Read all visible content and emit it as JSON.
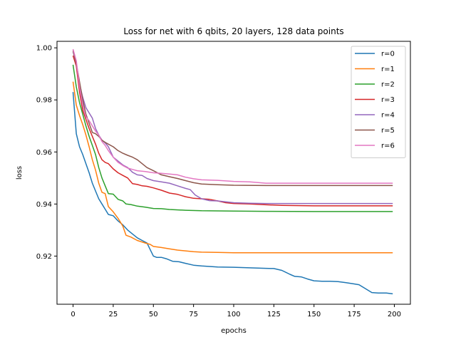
{
  "chart_data": {
    "type": "line",
    "title": "Loss for net with 6 qbits, 20 layers, 128 data points",
    "xlabel": "epochs",
    "ylabel": "loss",
    "xlim": [
      -10,
      210
    ],
    "ylim": [
      0.9015,
      1.0025
    ],
    "xticks": [
      0,
      25,
      50,
      75,
      100,
      125,
      150,
      175,
      200
    ],
    "yticks": [
      0.92,
      0.94,
      0.96,
      0.98,
      1.0
    ],
    "ytick_labels": [
      "0.92",
      "0.94",
      "0.96",
      "0.98",
      "1.00"
    ],
    "grid": false,
    "legend_position": "top-right",
    "series": [
      {
        "name": "r=0",
        "color": "#1f77b4",
        "points": [
          [
            0,
            0.983
          ],
          [
            2,
            0.967
          ],
          [
            4,
            0.962
          ],
          [
            6,
            0.959
          ],
          [
            8,
            0.9555
          ],
          [
            10,
            0.952
          ],
          [
            12,
            0.948
          ],
          [
            14,
            0.945
          ],
          [
            16,
            0.942
          ],
          [
            18,
            0.94
          ],
          [
            20,
            0.938
          ],
          [
            22,
            0.936
          ],
          [
            25,
            0.9355
          ],
          [
            28,
            0.9335
          ],
          [
            31,
            0.932
          ],
          [
            34,
            0.93
          ],
          [
            37,
            0.9285
          ],
          [
            40,
            0.927
          ],
          [
            43,
            0.926
          ],
          [
            46,
            0.925
          ],
          [
            48,
            0.9225
          ],
          [
            50,
            0.92
          ],
          [
            52,
            0.9195
          ],
          [
            55,
            0.9195
          ],
          [
            58,
            0.919
          ],
          [
            62,
            0.918
          ],
          [
            66,
            0.9178
          ],
          [
            70,
            0.9172
          ],
          [
            75,
            0.9165
          ],
          [
            80,
            0.9162
          ],
          [
            90,
            0.9158
          ],
          [
            100,
            0.9157
          ],
          [
            110,
            0.9155
          ],
          [
            120,
            0.9153
          ],
          [
            125,
            0.9152
          ],
          [
            130,
            0.9145
          ],
          [
            135,
            0.913
          ],
          [
            138,
            0.9122
          ],
          [
            142,
            0.912
          ],
          [
            146,
            0.9112
          ],
          [
            150,
            0.9105
          ],
          [
            155,
            0.9103
          ],
          [
            160,
            0.9103
          ],
          [
            165,
            0.9102
          ],
          [
            170,
            0.9098
          ],
          [
            175,
            0.9093
          ],
          [
            178,
            0.909
          ],
          [
            182,
            0.9075
          ],
          [
            186,
            0.906
          ],
          [
            190,
            0.9058
          ],
          [
            195,
            0.9058
          ],
          [
            199,
            0.9055
          ]
        ]
      },
      {
        "name": "r=1",
        "color": "#ff7f0e",
        "points": [
          [
            0,
            0.987
          ],
          [
            2,
            0.978
          ],
          [
            4,
            0.974
          ],
          [
            6,
            0.9705
          ],
          [
            8,
            0.9665
          ],
          [
            10,
            0.962
          ],
          [
            12,
            0.957
          ],
          [
            14,
            0.953
          ],
          [
            16,
            0.948
          ],
          [
            18,
            0.9445
          ],
          [
            20,
            0.944
          ],
          [
            22,
            0.939
          ],
          [
            25,
            0.937
          ],
          [
            28,
            0.9345
          ],
          [
            31,
            0.9315
          ],
          [
            33,
            0.928
          ],
          [
            36,
            0.9273
          ],
          [
            40,
            0.926
          ],
          [
            45,
            0.925
          ],
          [
            48,
            0.9245
          ],
          [
            50,
            0.9237
          ],
          [
            55,
            0.9233
          ],
          [
            60,
            0.9228
          ],
          [
            65,
            0.9223
          ],
          [
            70,
            0.922
          ],
          [
            75,
            0.9217
          ],
          [
            80,
            0.9215
          ],
          [
            90,
            0.9214
          ],
          [
            100,
            0.9213
          ],
          [
            120,
            0.9213
          ],
          [
            150,
            0.9213
          ],
          [
            180,
            0.9213
          ],
          [
            199,
            0.9213
          ]
        ]
      },
      {
        "name": "r=2",
        "color": "#2ca02c",
        "points": [
          [
            0,
            0.9935
          ],
          [
            2,
            0.985
          ],
          [
            4,
            0.979
          ],
          [
            6,
            0.9745
          ],
          [
            8,
            0.97
          ],
          [
            10,
            0.966
          ],
          [
            12,
            0.9625
          ],
          [
            14,
            0.959
          ],
          [
            16,
            0.954
          ],
          [
            18,
            0.95
          ],
          [
            20,
            0.947
          ],
          [
            22,
            0.944
          ],
          [
            25,
            0.9438
          ],
          [
            28,
            0.9418
          ],
          [
            31,
            0.9412
          ],
          [
            33,
            0.94
          ],
          [
            36,
            0.9398
          ],
          [
            40,
            0.9392
          ],
          [
            45,
            0.9388
          ],
          [
            50,
            0.9383
          ],
          [
            55,
            0.9382
          ],
          [
            60,
            0.9379
          ],
          [
            70,
            0.9376
          ],
          [
            80,
            0.9374
          ],
          [
            100,
            0.9373
          ],
          [
            120,
            0.9372
          ],
          [
            150,
            0.9371
          ],
          [
            180,
            0.9371
          ],
          [
            199,
            0.9371
          ]
        ]
      },
      {
        "name": "r=3",
        "color": "#d62728",
        "points": [
          [
            0,
            0.997
          ],
          [
            2,
            0.993
          ],
          [
            4,
            0.983
          ],
          [
            6,
            0.976
          ],
          [
            8,
            0.9725
          ],
          [
            10,
            0.969
          ],
          [
            12,
            0.966
          ],
          [
            14,
            0.963
          ],
          [
            16,
            0.9595
          ],
          [
            18,
            0.957
          ],
          [
            20,
            0.956
          ],
          [
            22,
            0.9555
          ],
          [
            25,
            0.9535
          ],
          [
            28,
            0.952
          ],
          [
            31,
            0.951
          ],
          [
            34,
            0.95
          ],
          [
            37,
            0.9478
          ],
          [
            40,
            0.9475
          ],
          [
            43,
            0.947
          ],
          [
            46,
            0.9468
          ],
          [
            50,
            0.9462
          ],
          [
            55,
            0.9453
          ],
          [
            60,
            0.9442
          ],
          [
            65,
            0.9437
          ],
          [
            70,
            0.9428
          ],
          [
            75,
            0.9422
          ],
          [
            80,
            0.942
          ],
          [
            85,
            0.9418
          ],
          [
            90,
            0.9412
          ],
          [
            95,
            0.9405
          ],
          [
            100,
            0.9402
          ],
          [
            110,
            0.94
          ],
          [
            120,
            0.9397
          ],
          [
            130,
            0.9395
          ],
          [
            150,
            0.9393
          ],
          [
            170,
            0.9393
          ],
          [
            199,
            0.9393
          ]
        ]
      },
      {
        "name": "r=4",
        "color": "#9467bd",
        "points": [
          [
            0,
            0.9985
          ],
          [
            2,
            0.994
          ],
          [
            4,
            0.986
          ],
          [
            6,
            0.981
          ],
          [
            8,
            0.977
          ],
          [
            10,
            0.975
          ],
          [
            12,
            0.973
          ],
          [
            14,
            0.969
          ],
          [
            16,
            0.9665
          ],
          [
            18,
            0.9645
          ],
          [
            20,
            0.9635
          ],
          [
            22,
            0.962
          ],
          [
            25,
            0.958
          ],
          [
            28,
            0.9565
          ],
          [
            31,
            0.955
          ],
          [
            34,
            0.954
          ],
          [
            37,
            0.9522
          ],
          [
            40,
            0.9512
          ],
          [
            43,
            0.951
          ],
          [
            46,
            0.9498
          ],
          [
            50,
            0.949
          ],
          [
            55,
            0.9485
          ],
          [
            60,
            0.948
          ],
          [
            65,
            0.947
          ],
          [
            70,
            0.946
          ],
          [
            73,
            0.9455
          ],
          [
            76,
            0.9435
          ],
          [
            80,
            0.942
          ],
          [
            85,
            0.9413
          ],
          [
            90,
            0.9412
          ],
          [
            100,
            0.9405
          ],
          [
            110,
            0.9403
          ],
          [
            120,
            0.9402
          ],
          [
            130,
            0.9402
          ],
          [
            150,
            0.9402
          ],
          [
            170,
            0.9402
          ],
          [
            199,
            0.9402
          ]
        ]
      },
      {
        "name": "r=5",
        "color": "#8c564b",
        "points": [
          [
            0,
            0.999
          ],
          [
            2,
            0.994
          ],
          [
            4,
            0.987
          ],
          [
            6,
            0.98
          ],
          [
            8,
            0.9745
          ],
          [
            10,
            0.971
          ],
          [
            12,
            0.9675
          ],
          [
            14,
            0.967
          ],
          [
            16,
            0.966
          ],
          [
            18,
            0.9645
          ],
          [
            20,
            0.9637
          ],
          [
            22,
            0.963
          ],
          [
            25,
            0.962
          ],
          [
            28,
            0.9605
          ],
          [
            31,
            0.9595
          ],
          [
            34,
            0.9587
          ],
          [
            37,
            0.958
          ],
          [
            40,
            0.957
          ],
          [
            43,
            0.9555
          ],
          [
            46,
            0.954
          ],
          [
            50,
            0.9528
          ],
          [
            55,
            0.9512
          ],
          [
            60,
            0.9505
          ],
          [
            65,
            0.9498
          ],
          [
            70,
            0.949
          ],
          [
            75,
            0.9482
          ],
          [
            80,
            0.9477
          ],
          [
            90,
            0.9474
          ],
          [
            100,
            0.9472
          ],
          [
            120,
            0.9471
          ],
          [
            150,
            0.9471
          ],
          [
            199,
            0.9471
          ]
        ]
      },
      {
        "name": "r=6",
        "color": "#e377c2",
        "points": [
          [
            0,
            0.9995
          ],
          [
            2,
            0.995
          ],
          [
            4,
            0.985
          ],
          [
            6,
            0.978
          ],
          [
            8,
            0.9735
          ],
          [
            10,
            0.972
          ],
          [
            12,
            0.97
          ],
          [
            14,
            0.968
          ],
          [
            16,
            0.9665
          ],
          [
            18,
            0.964
          ],
          [
            20,
            0.9625
          ],
          [
            22,
            0.9605
          ],
          [
            25,
            0.958
          ],
          [
            28,
            0.956
          ],
          [
            31,
            0.9548
          ],
          [
            34,
            0.9538
          ],
          [
            37,
            0.9533
          ],
          [
            40,
            0.9528
          ],
          [
            45,
            0.9525
          ],
          [
            50,
            0.952
          ],
          [
            55,
            0.9518
          ],
          [
            60,
            0.9515
          ],
          [
            65,
            0.9512
          ],
          [
            70,
            0.9503
          ],
          [
            75,
            0.9497
          ],
          [
            80,
            0.9493
          ],
          [
            90,
            0.9491
          ],
          [
            100,
            0.9487
          ],
          [
            110,
            0.9485
          ],
          [
            120,
            0.948
          ],
          [
            130,
            0.948
          ],
          [
            150,
            0.948
          ],
          [
            170,
            0.948
          ],
          [
            199,
            0.948
          ]
        ]
      }
    ]
  }
}
